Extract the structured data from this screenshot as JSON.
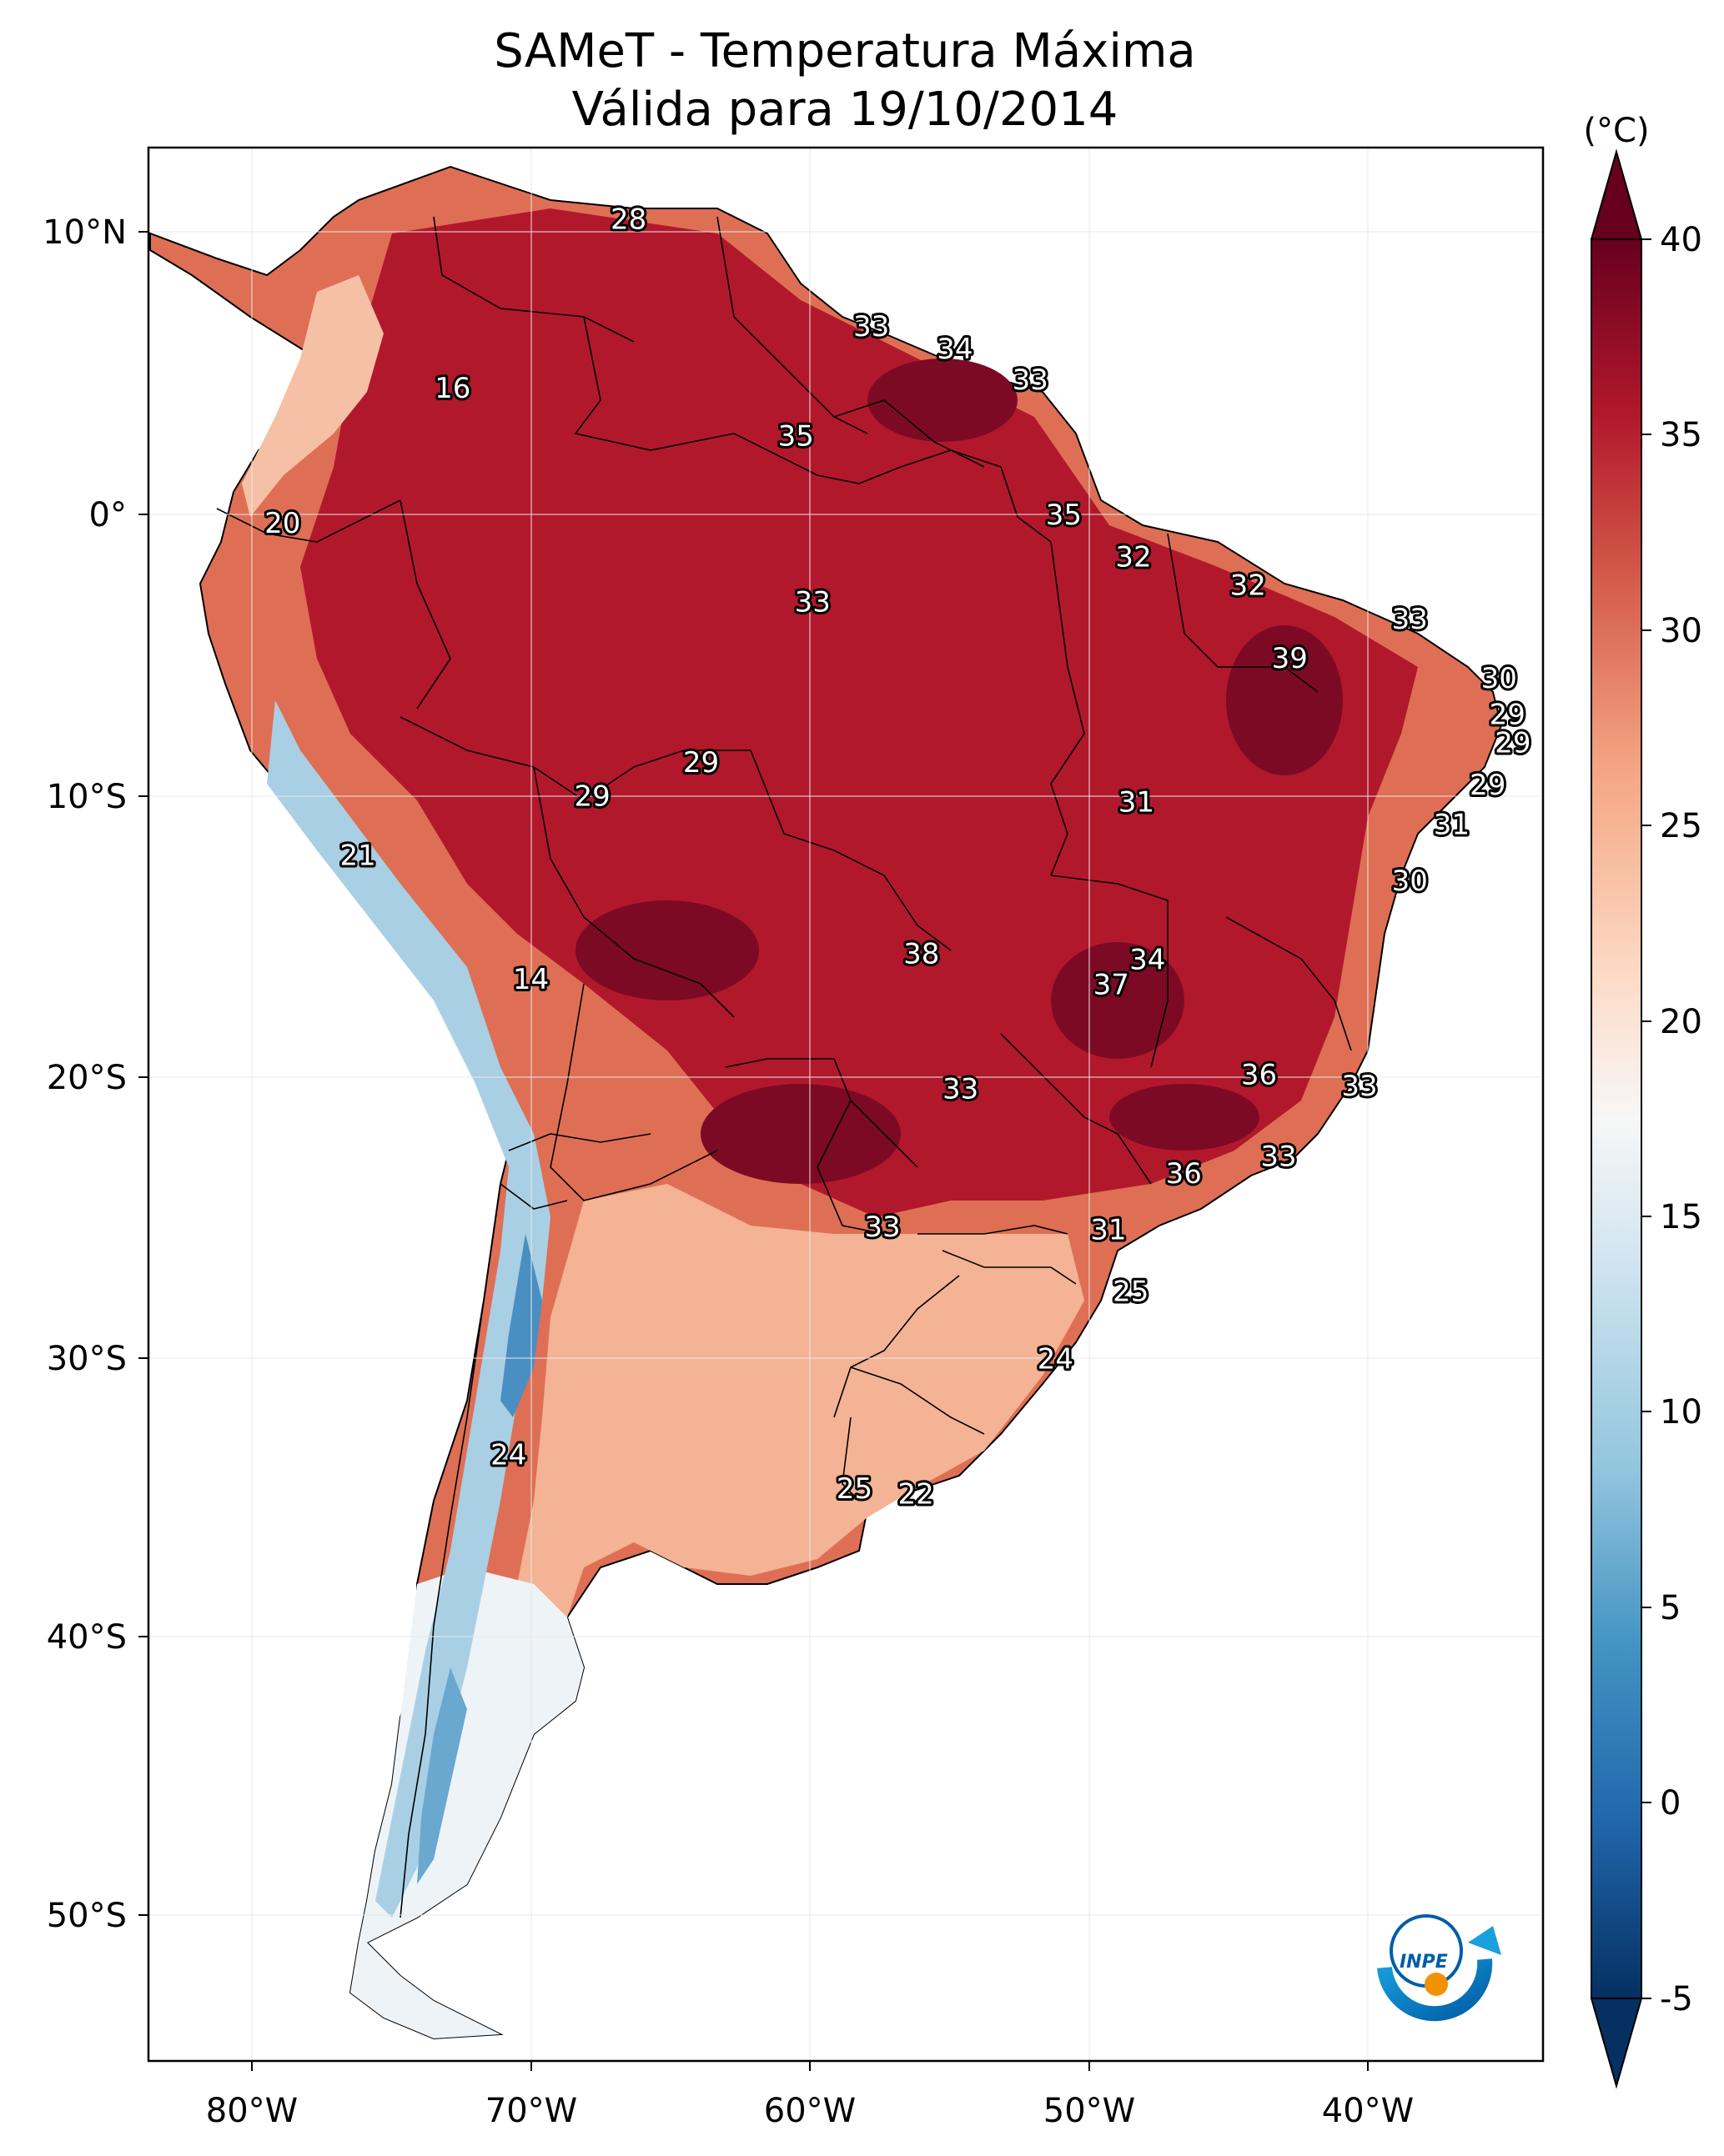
{
  "title": {
    "line1": "SAMeT - Temperatura Máxima",
    "line2": "Válida para 19/10/2014"
  },
  "map": {
    "lon_ticks": [
      "80°W",
      "70°W",
      "60°W",
      "50°W",
      "40°W"
    ],
    "lat_ticks": [
      "10°N",
      "0°",
      "10°S",
      "20°S",
      "30°S",
      "40°S",
      "50°S"
    ],
    "stations": [
      {
        "label": "28",
        "lon": -66.5,
        "lat": 10.5
      },
      {
        "label": "33",
        "lon": -57.8,
        "lat": 6.7
      },
      {
        "label": "34",
        "lon": -54.8,
        "lat": 5.9
      },
      {
        "label": "33",
        "lon": -52.1,
        "lat": 4.8
      },
      {
        "label": "16",
        "lon": -72.8,
        "lat": 4.5
      },
      {
        "label": "35",
        "lon": -60.5,
        "lat": 2.8
      },
      {
        "label": "35",
        "lon": -50.9,
        "lat": 0.0
      },
      {
        "label": "20",
        "lon": -78.9,
        "lat": -0.3
      },
      {
        "label": "32",
        "lon": -48.4,
        "lat": -1.5
      },
      {
        "label": "32",
        "lon": -44.3,
        "lat": -2.5
      },
      {
        "label": "33",
        "lon": -59.9,
        "lat": -3.1
      },
      {
        "label": "33",
        "lon": -38.5,
        "lat": -3.7
      },
      {
        "label": "39",
        "lon": -42.8,
        "lat": -5.1
      },
      {
        "label": "30",
        "lon": -35.3,
        "lat": -5.8
      },
      {
        "label": "29",
        "lon": -35.0,
        "lat": -7.1
      },
      {
        "label": "29",
        "lon": -34.8,
        "lat": -8.1
      },
      {
        "label": "29",
        "lon": -63.9,
        "lat": -8.8
      },
      {
        "label": "29",
        "lon": -67.8,
        "lat": -10.0
      },
      {
        "label": "31",
        "lon": -48.3,
        "lat": -10.2
      },
      {
        "label": "29",
        "lon": -35.7,
        "lat": -9.6
      },
      {
        "label": "31",
        "lon": -37.0,
        "lat": -11.0
      },
      {
        "label": "30",
        "lon": -38.5,
        "lat": -13.0
      },
      {
        "label": "21",
        "lon": -76.2,
        "lat": -12.1
      },
      {
        "label": "14",
        "lon": -70.0,
        "lat": -16.5
      },
      {
        "label": "38",
        "lon": -56.0,
        "lat": -15.6
      },
      {
        "label": "34",
        "lon": -47.9,
        "lat": -15.8
      },
      {
        "label": "37",
        "lon": -49.2,
        "lat": -16.7
      },
      {
        "label": "36",
        "lon": -43.9,
        "lat": -19.9
      },
      {
        "label": "33",
        "lon": -40.3,
        "lat": -20.3
      },
      {
        "label": "33",
        "lon": -54.6,
        "lat": -20.4
      },
      {
        "label": "33",
        "lon": -43.2,
        "lat": -22.8
      },
      {
        "label": "36",
        "lon": -46.6,
        "lat": -23.4
      },
      {
        "label": "33",
        "lon": -57.4,
        "lat": -25.3
      },
      {
        "label": "31",
        "lon": -49.3,
        "lat": -25.4
      },
      {
        "label": "25",
        "lon": -48.5,
        "lat": -27.6
      },
      {
        "label": "24",
        "lon": -51.2,
        "lat": -30.0
      },
      {
        "label": "24",
        "lon": -70.8,
        "lat": -33.4
      },
      {
        "label": "25",
        "lon": -58.4,
        "lat": -34.6
      },
      {
        "label": "22",
        "lon": -56.2,
        "lat": -34.8
      }
    ]
  },
  "colorbar": {
    "unit": "(°C)",
    "ticks": [
      "40",
      "35",
      "30",
      "25",
      "20",
      "15",
      "10",
      "5",
      "0",
      "-5"
    ],
    "colors": [
      "#053061",
      "#2166ac",
      "#4393c3",
      "#92c5de",
      "#d1e5f0",
      "#f7f7f7",
      "#fddbc7",
      "#f4a582",
      "#d6604d",
      "#b2182b",
      "#67001f"
    ]
  },
  "logo": {
    "text": "INPE"
  }
}
